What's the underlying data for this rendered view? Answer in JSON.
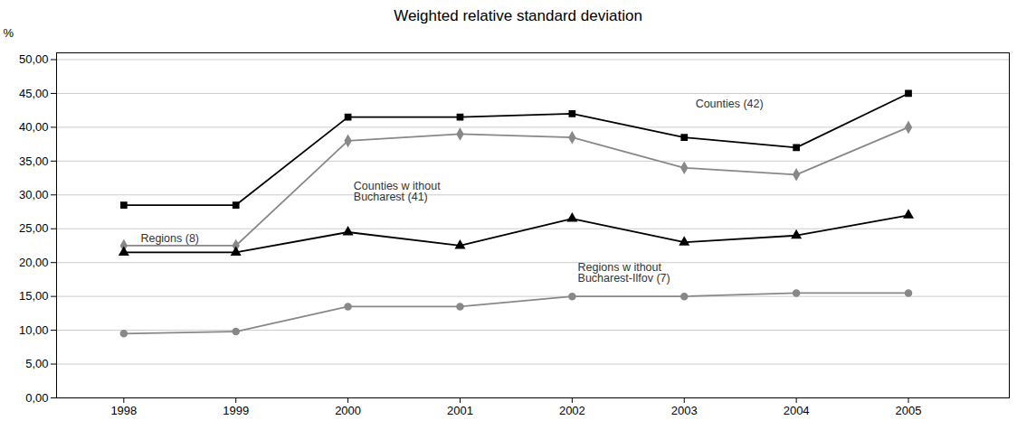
{
  "chart_data": {
    "type": "line",
    "title": "Weighted relative standard deviation",
    "ylabel": "%",
    "x": [
      1998,
      1999,
      2000,
      2001,
      2002,
      2003,
      2004,
      2005
    ],
    "series": [
      {
        "color": "#000000",
        "marker": "square",
        "values": [
          28.5,
          28.5,
          41.5,
          41.5,
          42.0,
          38.5,
          37.0,
          45.0
        ]
      },
      {
        "color": "#888888",
        "marker": "diamond",
        "values": [
          22.5,
          22.5,
          38.0,
          39.0,
          38.5,
          34.0,
          33.0,
          40.0
        ]
      },
      {
        "color": "#000000",
        "marker": "triangle",
        "values": [
          21.5,
          21.5,
          24.5,
          22.5,
          26.5,
          23.0,
          24.0,
          27.0
        ]
      },
      {
        "color": "#888888",
        "marker": "circle",
        "values": [
          9.5,
          9.8,
          13.5,
          13.5,
          15.0,
          15.0,
          15.5,
          15.5
        ]
      }
    ],
    "annotations": [
      {
        "text": "Regions (8)",
        "x": 1998.15,
        "y": 23.5
      },
      {
        "text": "Counties w ithout\nBucharest (41)",
        "x": 2000.05,
        "y": 30.5
      },
      {
        "text": "Regions w ithout\nBucharest-Ilfov (7)",
        "x": 2002.05,
        "y": 18.5
      },
      {
        "text": "Counties (42)",
        "x": 2003.1,
        "y": 43.5
      }
    ],
    "xlim": [
      1997.4,
      2005.9
    ],
    "xticks": [
      1998,
      1999,
      2000,
      2001,
      2002,
      2003,
      2004,
      2005
    ],
    "ylim": [
      0,
      51
    ],
    "yticks": [
      {
        "value": 0,
        "label": "0,00"
      },
      {
        "value": 5.0,
        "label": "5,00"
      },
      {
        "value": 10.0,
        "label": "10,00"
      },
      {
        "value": 15.0,
        "label": "15,00"
      },
      {
        "value": 20.0,
        "label": "20,00"
      },
      {
        "value": 25.0,
        "label": "25,00"
      },
      {
        "value": 30.0,
        "label": "30,00"
      },
      {
        "value": 35.0,
        "label": "35,00"
      },
      {
        "value": 40.0,
        "label": "40,00"
      },
      {
        "value": 45.0,
        "label": "45,00"
      },
      {
        "value": 50.0,
        "label": "50,00"
      }
    ],
    "grid": true
  }
}
